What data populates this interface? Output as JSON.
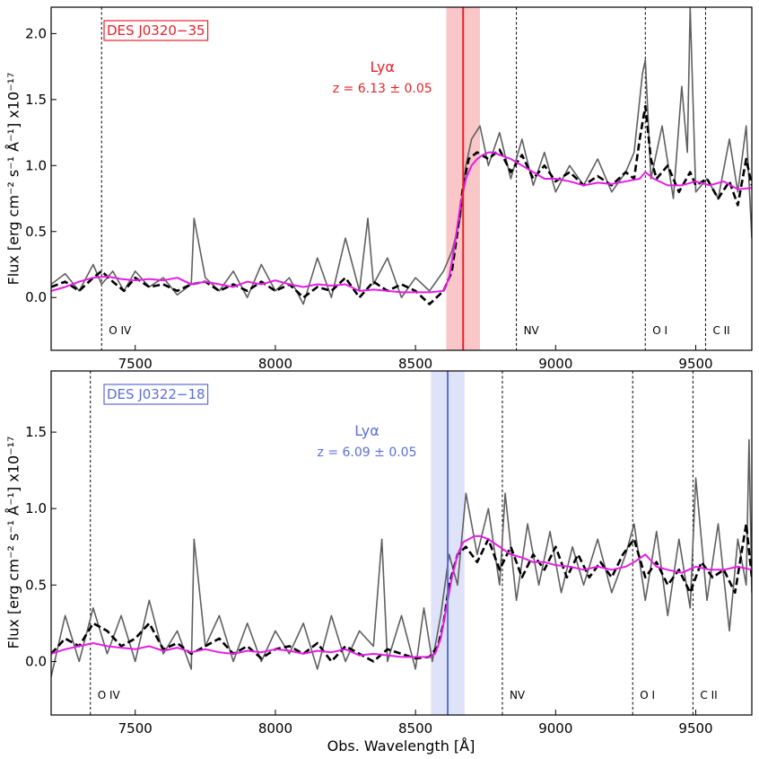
{
  "chart_data": [
    {
      "type": "line",
      "object_label": "DES J0320−35",
      "accent_color": "#e8222a",
      "band_color": "#f9c7c7",
      "lya_label": "Lyα",
      "redshift_label": "z = 6.13 ± 0.05",
      "lya_wavelength": 8670,
      "lya_band": [
        8610,
        8730
      ],
      "xlim": [
        7200,
        9700
      ],
      "ylim": [
        -0.4,
        2.2
      ],
      "xticks": [
        7500,
        8000,
        8500,
        9000,
        9500
      ],
      "xtick_labels": [
        "7500",
        "8000",
        "8500",
        "9000",
        "9500"
      ],
      "yticks": [
        0.0,
        0.5,
        1.0,
        1.5,
        2.0
      ],
      "ytick_labels": [
        "0.0",
        "0.5",
        "1.0",
        "1.5",
        "2.0"
      ],
      "ylabel": "Flux [erg cm⁻² s⁻¹ Å⁻¹] x10⁻¹⁷",
      "xlabel": "",
      "emission_lines": [
        {
          "name": "O IV",
          "x": 7380
        },
        {
          "name": "NV",
          "x": 8860
        },
        {
          "name": "O I",
          "x": 9320
        },
        {
          "name": "C II",
          "x": 9535
        }
      ],
      "series": [
        {
          "role": "raw",
          "color": "#606060",
          "x": [
            7200,
            7250,
            7300,
            7350,
            7380,
            7420,
            7460,
            7500,
            7550,
            7600,
            7650,
            7700,
            7710,
            7750,
            7800,
            7850,
            7900,
            7950,
            8000,
            8050,
            8100,
            8150,
            8200,
            8250,
            8300,
            8330,
            8350,
            8400,
            8450,
            8500,
            8550,
            8600,
            8630,
            8660,
            8680,
            8700,
            8730,
            8760,
            8800,
            8840,
            8880,
            8920,
            8960,
            9000,
            9050,
            9100,
            9150,
            9200,
            9250,
            9280,
            9310,
            9320,
            9340,
            9380,
            9420,
            9450,
            9470,
            9480,
            9500,
            9540,
            9580,
            9620,
            9650,
            9680,
            9700
          ],
          "y": [
            0.1,
            0.18,
            0.05,
            0.25,
            0.1,
            0.2,
            0.05,
            0.2,
            0.08,
            0.15,
            0.02,
            0.1,
            0.6,
            0.15,
            0.05,
            0.2,
            0.0,
            0.25,
            0.05,
            0.15,
            -0.05,
            0.3,
            0.0,
            0.45,
            0.05,
            0.6,
            0.1,
            0.3,
            0.0,
            0.15,
            0.05,
            0.2,
            0.35,
            0.6,
            1.0,
            1.2,
            1.3,
            1.0,
            1.25,
            0.9,
            1.2,
            0.85,
            1.1,
            0.8,
            1.0,
            0.85,
            1.05,
            0.8,
            0.95,
            1.1,
            1.7,
            1.8,
            0.9,
            1.3,
            0.75,
            1.6,
            1.1,
            2.2,
            0.8,
            0.9,
            0.75,
            1.2,
            0.8,
            1.3,
            0.45
          ]
        },
        {
          "role": "smoothed",
          "color": "#000000",
          "x": [
            7200,
            7250,
            7300,
            7350,
            7380,
            7420,
            7460,
            7500,
            7550,
            7600,
            7650,
            7700,
            7750,
            7800,
            7850,
            7900,
            7950,
            8000,
            8050,
            8100,
            8150,
            8200,
            8250,
            8300,
            8350,
            8400,
            8450,
            8500,
            8550,
            8600,
            8630,
            8650,
            8670,
            8690,
            8720,
            8760,
            8800,
            8840,
            8880,
            8920,
            8960,
            9000,
            9050,
            9100,
            9150,
            9200,
            9250,
            9280,
            9300,
            9320,
            9340,
            9360,
            9400,
            9440,
            9480,
            9500,
            9540,
            9580,
            9620,
            9650,
            9680,
            9700
          ],
          "y": [
            0.08,
            0.12,
            0.05,
            0.15,
            0.2,
            0.12,
            0.05,
            0.15,
            0.08,
            0.1,
            0.05,
            0.1,
            0.12,
            0.05,
            0.1,
            0.05,
            0.12,
            0.05,
            0.1,
            0.0,
            0.08,
            0.05,
            0.15,
            0.0,
            0.12,
            0.05,
            0.1,
            0.05,
            -0.05,
            0.05,
            0.2,
            0.5,
            0.85,
            1.05,
            1.1,
            1.05,
            1.12,
            0.95,
            1.08,
            0.9,
            1.0,
            0.88,
            0.95,
            0.85,
            0.92,
            0.85,
            0.95,
            0.9,
            1.2,
            1.45,
            1.05,
            0.9,
            1.0,
            0.8,
            0.95,
            0.85,
            0.9,
            0.75,
            0.88,
            0.7,
            1.05,
            0.85
          ]
        },
        {
          "role": "composite",
          "color": "#e51ee5",
          "x": [
            7200,
            7250,
            7300,
            7350,
            7400,
            7450,
            7500,
            7550,
            7600,
            7650,
            7700,
            7750,
            7800,
            7850,
            7900,
            7950,
            8000,
            8050,
            8100,
            8150,
            8200,
            8250,
            8300,
            8350,
            8400,
            8450,
            8500,
            8550,
            8600,
            8620,
            8640,
            8660,
            8680,
            8700,
            8720,
            8740,
            8760,
            8780,
            8800,
            8840,
            8880,
            8920,
            8960,
            9000,
            9050,
            9100,
            9150,
            9200,
            9250,
            9300,
            9320,
            9350,
            9400,
            9450,
            9500,
            9550,
            9600,
            9650,
            9700
          ],
          "y": [
            0.05,
            0.08,
            0.12,
            0.15,
            0.16,
            0.14,
            0.13,
            0.14,
            0.13,
            0.15,
            0.1,
            0.12,
            0.1,
            0.08,
            0.12,
            0.1,
            0.13,
            0.1,
            0.08,
            0.1,
            0.09,
            0.1,
            0.05,
            0.06,
            0.05,
            0.04,
            0.04,
            0.04,
            0.05,
            0.15,
            0.4,
            0.7,
            0.9,
            1.0,
            1.05,
            1.08,
            1.1,
            1.1,
            1.08,
            1.05,
            1.0,
            0.95,
            0.9,
            0.9,
            0.88,
            0.85,
            0.87,
            0.86,
            0.88,
            0.9,
            0.95,
            0.9,
            0.85,
            0.85,
            0.88,
            0.85,
            0.88,
            0.82,
            0.83
          ]
        }
      ]
    },
    {
      "type": "line",
      "object_label": "DES J0322−18",
      "accent_color": "#5b6fd6",
      "band_color": "#dfe3fa",
      "lya_label": "Lyα",
      "redshift_label": "z = 6.09 ± 0.05",
      "lya_wavelength": 8615,
      "lya_band": [
        8555,
        8675
      ],
      "xlim": [
        7200,
        9700
      ],
      "ylim": [
        -0.35,
        1.9
      ],
      "xticks": [
        7500,
        8000,
        8500,
        9000,
        9500
      ],
      "xtick_labels": [
        "7500",
        "8000",
        "8500",
        "9000",
        "9500"
      ],
      "yticks": [
        0.0,
        0.5,
        1.0,
        1.5
      ],
      "ytick_labels": [
        "0.0",
        "0.5",
        "1.0",
        "1.5"
      ],
      "ylabel": "Flux [erg cm⁻² s⁻¹ Å⁻¹] x10⁻¹⁷",
      "xlabel": "Obs. Wavelength [Å]",
      "emission_lines": [
        {
          "name": "O IV",
          "x": 7340
        },
        {
          "name": "NV",
          "x": 8810
        },
        {
          "name": "O I",
          "x": 9275
        },
        {
          "name": "C II",
          "x": 9490
        }
      ],
      "series": [
        {
          "role": "raw",
          "color": "#606060",
          "x": [
            7200,
            7250,
            7300,
            7350,
            7400,
            7450,
            7500,
            7550,
            7600,
            7650,
            7700,
            7710,
            7750,
            7800,
            7850,
            7900,
            7950,
            8000,
            8050,
            8100,
            8150,
            8200,
            8250,
            8300,
            8350,
            8380,
            8400,
            8450,
            8500,
            8530,
            8560,
            8590,
            8620,
            8650,
            8680,
            8720,
            8760,
            8800,
            8820,
            8860,
            8900,
            8940,
            8980,
            9020,
            9060,
            9100,
            9150,
            9200,
            9250,
            9280,
            9320,
            9360,
            9400,
            9440,
            9480,
            9500,
            9540,
            9580,
            9620,
            9650,
            9680,
            9690,
            9700
          ],
          "y": [
            -0.1,
            0.3,
            0.0,
            0.35,
            0.05,
            0.3,
            0.0,
            0.4,
            0.05,
            0.2,
            -0.05,
            0.8,
            0.1,
            0.3,
            0.0,
            0.25,
            0.0,
            0.2,
            0.05,
            0.25,
            -0.05,
            0.3,
            0.0,
            0.2,
            0.1,
            0.8,
            0.0,
            0.3,
            -0.05,
            0.35,
            0.0,
            0.3,
            0.7,
            0.5,
            1.1,
            0.7,
            1.0,
            0.5,
            1.1,
            0.4,
            0.9,
            0.5,
            0.85,
            0.45,
            0.75,
            0.5,
            0.8,
            0.45,
            0.7,
            0.9,
            0.4,
            0.85,
            0.3,
            0.8,
            0.35,
            1.2,
            0.4,
            0.9,
            0.2,
            0.8,
            0.5,
            1.45,
            0.45
          ]
        },
        {
          "role": "smoothed",
          "color": "#000000",
          "x": [
            7200,
            7250,
            7300,
            7350,
            7400,
            7450,
            7500,
            7550,
            7600,
            7650,
            7700,
            7750,
            7800,
            7850,
            7900,
            7950,
            8000,
            8050,
            8100,
            8150,
            8200,
            8250,
            8300,
            8350,
            8400,
            8450,
            8500,
            8550,
            8580,
            8600,
            8620,
            8650,
            8680,
            8720,
            8760,
            8800,
            8840,
            8880,
            8920,
            8960,
            9000,
            9040,
            9080,
            9120,
            9160,
            9200,
            9240,
            9280,
            9320,
            9360,
            9400,
            9440,
            9480,
            9520,
            9560,
            9600,
            9640,
            9680,
            9700
          ],
          "y": [
            0.05,
            0.15,
            0.1,
            0.25,
            0.2,
            0.1,
            0.15,
            0.25,
            0.08,
            0.12,
            0.05,
            0.1,
            0.15,
            0.05,
            0.1,
            0.02,
            0.08,
            0.1,
            0.05,
            0.12,
            0.0,
            0.1,
            0.05,
            0.0,
            0.08,
            0.05,
            0.02,
            0.03,
            0.1,
            0.25,
            0.5,
            0.7,
            0.75,
            0.65,
            0.8,
            0.6,
            0.75,
            0.55,
            0.7,
            0.6,
            0.75,
            0.55,
            0.7,
            0.55,
            0.65,
            0.55,
            0.7,
            0.8,
            0.55,
            0.65,
            0.5,
            0.6,
            0.45,
            0.65,
            0.55,
            0.6,
            0.45,
            0.9,
            0.55
          ]
        },
        {
          "role": "composite",
          "color": "#e51ee5",
          "x": [
            7200,
            7250,
            7300,
            7350,
            7400,
            7450,
            7500,
            7550,
            7600,
            7650,
            7700,
            7750,
            7800,
            7850,
            7900,
            7950,
            8000,
            8050,
            8100,
            8150,
            8200,
            8250,
            8300,
            8350,
            8400,
            8450,
            8500,
            8550,
            8570,
            8590,
            8610,
            8630,
            8650,
            8670,
            8690,
            8710,
            8730,
            8760,
            8800,
            8840,
            8880,
            8920,
            8960,
            9000,
            9050,
            9100,
            9150,
            9200,
            9250,
            9280,
            9320,
            9360,
            9400,
            9450,
            9500,
            9550,
            9600,
            9650,
            9700
          ],
          "y": [
            0.05,
            0.08,
            0.1,
            0.12,
            0.1,
            0.09,
            0.08,
            0.1,
            0.07,
            0.09,
            0.06,
            0.08,
            0.06,
            0.05,
            0.07,
            0.06,
            0.08,
            0.07,
            0.05,
            0.07,
            0.06,
            0.08,
            0.04,
            0.05,
            0.04,
            0.03,
            0.03,
            0.03,
            0.05,
            0.15,
            0.35,
            0.55,
            0.7,
            0.78,
            0.8,
            0.82,
            0.82,
            0.8,
            0.75,
            0.7,
            0.68,
            0.65,
            0.65,
            0.63,
            0.62,
            0.6,
            0.62,
            0.6,
            0.62,
            0.65,
            0.7,
            0.62,
            0.6,
            0.58,
            0.62,
            0.6,
            0.6,
            0.62,
            0.6
          ]
        }
      ]
    }
  ]
}
